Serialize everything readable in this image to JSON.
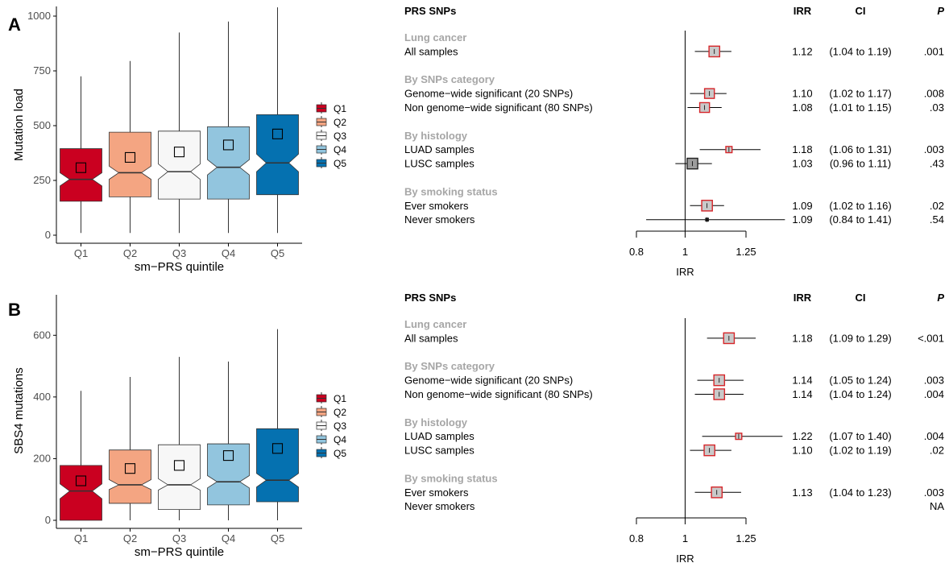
{
  "panels": [
    {
      "label": "A",
      "boxplot": {
        "type": "boxplot",
        "ylabel": "Mutation load",
        "xlabel": "sm−PRS quintile",
        "ylim": [
          0,
          1000
        ],
        "yticks": [
          0,
          250,
          500,
          750,
          1000
        ],
        "legend_position": "right",
        "groups": [
          {
            "name": "Q1",
            "color": "#CA0020",
            "min": 10,
            "q1": 155,
            "median": 255,
            "q3": 395,
            "max": 725,
            "notch_low": 225,
            "notch_high": 285,
            "mean": 308
          },
          {
            "name": "Q2",
            "color": "#F4A582",
            "min": 10,
            "q1": 175,
            "median": 285,
            "q3": 470,
            "max": 795,
            "notch_low": 255,
            "notch_high": 315,
            "mean": 355
          },
          {
            "name": "Q3",
            "color": "#F7F7F7",
            "min": 10,
            "q1": 165,
            "median": 290,
            "q3": 475,
            "max": 925,
            "notch_low": 255,
            "notch_high": 325,
            "mean": 380
          },
          {
            "name": "Q4",
            "color": "#92C5DE",
            "min": 10,
            "q1": 165,
            "median": 310,
            "q3": 495,
            "max": 975,
            "notch_low": 275,
            "notch_high": 345,
            "mean": 412
          },
          {
            "name": "Q5",
            "color": "#0571B0",
            "min": 10,
            "q1": 185,
            "median": 330,
            "q3": 550,
            "max": 1040,
            "notch_low": 290,
            "notch_high": 370,
            "mean": 462
          }
        ]
      },
      "forest": {
        "type": "forest",
        "header": {
          "snps": "PRS SNPs",
          "irr": "IRR",
          "ci": "CI",
          "p": "P"
        },
        "xlabel": "IRR",
        "xticks": [
          0.8,
          1,
          1.25
        ],
        "xtick_labels": [
          "0.8",
          "1",
          "1.25"
        ],
        "ref_line": 1,
        "rows": [
          {
            "kind": "section",
            "label": "Lung cancer"
          },
          {
            "kind": "data",
            "label": "All samples",
            "irr": 1.12,
            "low": 1.04,
            "high": 1.19,
            "irr_text": "1.12",
            "ci_text": "(1.04 to 1.19)",
            "p_text": ".001",
            "box_size": 0.6
          },
          {
            "kind": "gap"
          },
          {
            "kind": "section",
            "label": "By SNPs category"
          },
          {
            "kind": "data",
            "label": "Genome−wide significant (20 SNPs)",
            "irr": 1.1,
            "low": 1.02,
            "high": 1.17,
            "irr_text": "1.10",
            "ci_text": "(1.02 to 1.17)",
            "p_text": ".008",
            "box_size": 0.55
          },
          {
            "kind": "data",
            "label": "Non genome−wide significant (80 SNPs)",
            "irr": 1.08,
            "low": 1.01,
            "high": 1.15,
            "irr_text": "1.08",
            "ci_text": "(1.01 to 1.15)",
            "p_text": ".03",
            "box_size": 0.55
          },
          {
            "kind": "gap"
          },
          {
            "kind": "section",
            "label": "By histology"
          },
          {
            "kind": "data",
            "label": "LUAD samples",
            "irr": 1.18,
            "low": 1.06,
            "high": 1.31,
            "irr_text": "1.18",
            "ci_text": "(1.06 to 1.31)",
            "p_text": ".003",
            "box_size": 0.35
          },
          {
            "kind": "data",
            "label": "LUSC samples",
            "irr": 1.03,
            "low": 0.96,
            "high": 1.11,
            "irr_text": "1.03",
            "ci_text": "(0.96 to 1.11)",
            "p_text": ".43",
            "box_size": 0.6,
            "fill": "#9c9c9c",
            "stroke": "#222222"
          },
          {
            "kind": "gap"
          },
          {
            "kind": "section",
            "label": "By smoking status"
          },
          {
            "kind": "data",
            "label": "Ever smokers",
            "irr": 1.09,
            "low": 1.02,
            "high": 1.16,
            "irr_text": "1.09",
            "ci_text": "(1.02 to 1.16)",
            "p_text": ".02",
            "box_size": 0.6
          },
          {
            "kind": "data",
            "label": "Never smokers",
            "irr": 1.09,
            "low": 0.84,
            "high": 1.41,
            "irr_text": "1.09",
            "ci_text": "(0.84 to 1.41)",
            "p_text": ".54",
            "box_size": 0.15,
            "fill": "#222222",
            "stroke": "#222222"
          }
        ]
      }
    },
    {
      "label": "B",
      "boxplot": {
        "type": "boxplot",
        "ylabel": "SBS4 mutations",
        "xlabel": "sm−PRS quintile",
        "ylim": [
          0,
          700
        ],
        "yticks": [
          0,
          200,
          400,
          600
        ],
        "legend_position": "right",
        "groups": [
          {
            "name": "Q1",
            "color": "#CA0020",
            "min": 0,
            "q1": 0,
            "median": 95,
            "q3": 178,
            "max": 420,
            "notch_low": 70,
            "notch_high": 118,
            "mean": 128
          },
          {
            "name": "Q2",
            "color": "#F4A582",
            "min": 0,
            "q1": 55,
            "median": 115,
            "q3": 228,
            "max": 465,
            "notch_low": 100,
            "notch_high": 132,
            "mean": 168
          },
          {
            "name": "Q3",
            "color": "#F7F7F7",
            "min": 0,
            "q1": 35,
            "median": 115,
            "q3": 245,
            "max": 530,
            "notch_low": 98,
            "notch_high": 135,
            "mean": 178
          },
          {
            "name": "Q4",
            "color": "#92C5DE",
            "min": 0,
            "q1": 50,
            "median": 125,
            "q3": 248,
            "max": 515,
            "notch_low": 105,
            "notch_high": 145,
            "mean": 210
          },
          {
            "name": "Q5",
            "color": "#0571B0",
            "min": 0,
            "q1": 60,
            "median": 130,
            "q3": 297,
            "max": 620,
            "notch_low": 108,
            "notch_high": 152,
            "mean": 233
          }
        ]
      },
      "forest": {
        "type": "forest",
        "header": {
          "snps": "PRS SNPs",
          "irr": "IRR",
          "ci": "CI",
          "p": "P"
        },
        "xlabel": "IRR",
        "xticks": [
          0.8,
          1,
          1.25
        ],
        "xtick_labels": [
          "0.8",
          "1",
          "1.25"
        ],
        "ref_line": 1,
        "rows": [
          {
            "kind": "section",
            "label": "Lung cancer"
          },
          {
            "kind": "data",
            "label": "All samples",
            "irr": 1.18,
            "low": 1.09,
            "high": 1.29,
            "irr_text": "1.18",
            "ci_text": "(1.09 to 1.29)",
            "p_text": "<.001",
            "box_size": 0.6
          },
          {
            "kind": "gap"
          },
          {
            "kind": "section",
            "label": "By SNPs category"
          },
          {
            "kind": "data",
            "label": "Genome−wide significant (20 SNPs)",
            "irr": 1.14,
            "low": 1.05,
            "high": 1.24,
            "irr_text": "1.14",
            "ci_text": "(1.05 to 1.24)",
            "p_text": ".003",
            "box_size": 0.6
          },
          {
            "kind": "data",
            "label": "Non genome−wide significant (80 SNPs)",
            "irr": 1.14,
            "low": 1.04,
            "high": 1.24,
            "irr_text": "1.14",
            "ci_text": "(1.04 to 1.24)",
            "p_text": ".004",
            "box_size": 0.6
          },
          {
            "kind": "gap"
          },
          {
            "kind": "section",
            "label": "By histology"
          },
          {
            "kind": "data",
            "label": "LUAD samples",
            "irr": 1.22,
            "low": 1.07,
            "high": 1.4,
            "irr_text": "1.22",
            "ci_text": "(1.07 to 1.40)",
            "p_text": ".004",
            "box_size": 0.35
          },
          {
            "kind": "data",
            "label": "LUSC samples",
            "irr": 1.1,
            "low": 1.02,
            "high": 1.19,
            "irr_text": "1.10",
            "ci_text": "(1.02 to 1.19)",
            "p_text": ".02",
            "box_size": 0.6
          },
          {
            "kind": "gap"
          },
          {
            "kind": "section",
            "label": "By smoking status"
          },
          {
            "kind": "data",
            "label": "Ever smokers",
            "irr": 1.13,
            "low": 1.04,
            "high": 1.23,
            "irr_text": "1.13",
            "ci_text": "(1.04 to 1.23)",
            "p_text": ".003",
            "box_size": 0.6
          },
          {
            "kind": "data",
            "label": "Never smokers",
            "irr": null,
            "low": null,
            "high": null,
            "irr_text": "",
            "ci_text": "",
            "p_text": "NA",
            "box_size": 0
          }
        ]
      }
    }
  ],
  "colors": {
    "section_text": "#a6a6a6",
    "forest_box_fill": "#c9c9c9",
    "forest_box_stroke": "#d6262a"
  }
}
